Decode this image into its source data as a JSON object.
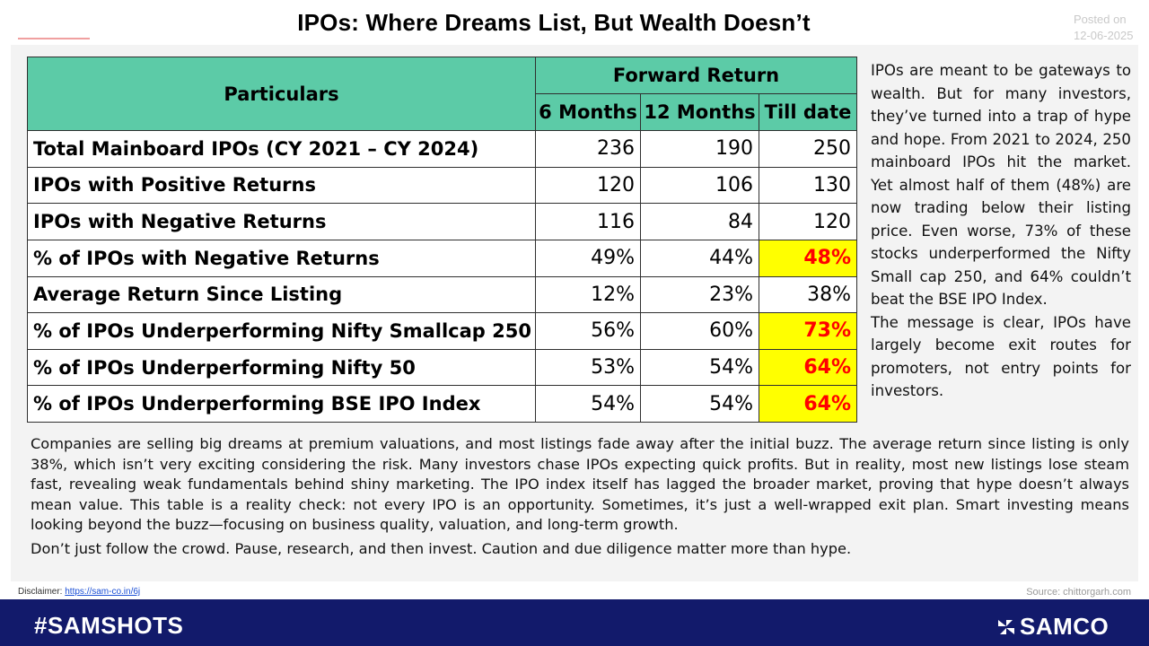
{
  "header": {
    "title": "IPOs: Where Dreams List, But Wealth Doesn’t",
    "posted_label": "Posted on",
    "posted_date": "12-06-2025"
  },
  "table": {
    "particulars_header": "Particulars",
    "group_header": "Forward Return",
    "columns": [
      "6 Months",
      "12 Months",
      "Till date"
    ],
    "rows": [
      {
        "label": "Total Mainboard IPOs (CY 2021 – CY 2024)",
        "values": [
          "236",
          "190",
          "250"
        ],
        "highlight": false
      },
      {
        "label": "IPOs with Positive Returns",
        "values": [
          "120",
          "106",
          "130"
        ],
        "highlight": false
      },
      {
        "label": "IPOs with Negative Returns",
        "values": [
          "116",
          "84",
          "120"
        ],
        "highlight": false
      },
      {
        "label": "% of IPOs with Negative Returns",
        "values": [
          "49%",
          "44%",
          "48%"
        ],
        "highlight": true
      },
      {
        "label": "Average Return Since Listing",
        "values": [
          "12%",
          "23%",
          "38%"
        ],
        "highlight": false
      },
      {
        "label": "% of IPOs Underperforming Nifty Smallcap 250",
        "values": [
          "56%",
          "60%",
          "73%"
        ],
        "highlight": true
      },
      {
        "label": "% of IPOs Underperforming Nifty 50",
        "values": [
          "53%",
          "54%",
          "64%"
        ],
        "highlight": true
      },
      {
        "label": "% of IPOs Underperforming BSE IPO Index",
        "values": [
          "54%",
          "54%",
          "64%"
        ],
        "highlight": true
      }
    ]
  },
  "side_text": {
    "para1": "IPOs are meant to be gateways to wealth. But for many investors, they’ve turned into a trap of hype and hope. From 2021 to 2024, 250 mainboard IPOs hit the market. Yet almost half of them (48%) are now trading below their listing price. Even worse, 73% of these stocks underperformed the Nifty Small cap 250, and 64% couldn’t beat the BSE IPO Index.",
    "para2": "The message is clear, IPOs have largely become exit routes for promoters, not entry points for investors."
  },
  "bottom_text": {
    "para1": "Companies are selling big dreams at premium valuations, and most listings fade away after the initial buzz. The average return since listing is only 38%, which isn’t very exciting considering the risk. Many investors chase IPOs expecting quick profits. But in reality, most new listings lose steam fast, revealing weak fundamentals behind shiny marketing. The IPO index itself has lagged the broader market, proving that hype doesn’t always mean value. This table is a reality check: not every IPO is an opportunity. Sometimes, it’s just a well-wrapped exit plan. Smart investing means looking beyond the buzz—focusing on business quality, valuation, and long-term growth.",
    "para2": "Don’t just follow the crowd. Pause, research, and then invest. Caution and due diligence matter more than hype."
  },
  "footer": {
    "disclaimer_label": "Disclaimer:",
    "disclaimer_link": "https://sam-co.in/6j",
    "source": "Source: chittorgarh.com",
    "hashtag": "#SAMSHOTS",
    "brand": "SAMCO"
  },
  "colors": {
    "header_green": "#5ccba7",
    "highlight_yellow": "#ffff00",
    "highlight_red": "#ff0000",
    "footer_navy": "#121a6b"
  }
}
